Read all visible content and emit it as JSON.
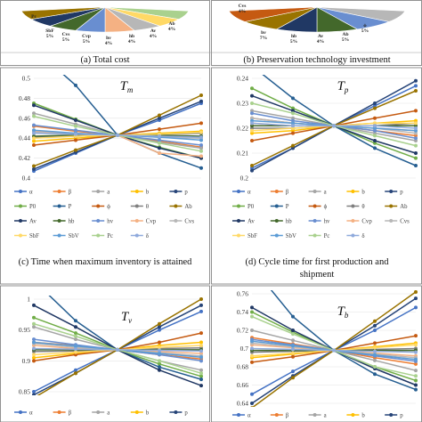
{
  "captions": {
    "a": "(a) Total cost",
    "b": "(b) Preservation technology investment",
    "c": "(c) Time when maximum inventory is attained",
    "d1": "(d) Cycle time for first production and",
    "d2": "shipment"
  },
  "pie_labels": {
    "a": [
      {
        "name": "Pc",
        "pct": ""
      },
      {
        "name": "SbF",
        "pct": "5%"
      },
      {
        "name": "Cvs",
        "pct": "5%"
      },
      {
        "name": "Cvp",
        "pct": "5%"
      },
      {
        "name": "hv",
        "pct": "4%"
      },
      {
        "name": "hb",
        "pct": "4%"
      },
      {
        "name": "Av",
        "pct": "4%"
      },
      {
        "name": "Ab",
        "pct": "4%"
      }
    ],
    "b": [
      {
        "name": "Cvs",
        "pct": "4%"
      },
      {
        "name": "hv",
        "pct": "7%"
      },
      {
        "name": "hb",
        "pct": "5%"
      },
      {
        "name": "Av",
        "pct": "4%"
      },
      {
        "name": "Ab",
        "pct": "5%"
      },
      {
        "name": "ϕ",
        "pct": "5%"
      }
    ]
  },
  "colors": {
    "α": "#4472c4",
    "β": "#ed7d31",
    "a": "#a5a5a5",
    "b": "#ffc000",
    "p": "#264478",
    "P0": "#70ad47",
    "P": "#255e91",
    "ϕ": "#c55a11",
    "θ": "#7f7f7f",
    "Ab": "#997300",
    "Av": "#203864",
    "hb": "#43682b",
    "hv": "#698ed0",
    "Cvp": "#f4b183",
    "Cvs": "#b7b7b7",
    "SbF": "#ffd966",
    "SbV": "#5b9bd5",
    "Pc": "#a9d18e",
    "δ": "#8faadc"
  },
  "chart_data": [
    {
      "type": "line",
      "title": "Tm",
      "x": [
        1,
        2,
        3,
        4,
        5
      ],
      "ylim": [
        0.4,
        0.5
      ],
      "yticks": [
        "0.5",
        "0.48",
        "0.46",
        "0.44",
        "0.42",
        "0.4"
      ],
      "legend_position": "bottom",
      "series": [
        {
          "name": "α",
          "values": [
            0.407,
            0.425,
            0.443,
            0.458,
            0.475
          ]
        },
        {
          "name": "β",
          "values": [
            0.452,
            0.447,
            0.443,
            0.437,
            0.431
          ]
        },
        {
          "name": "a",
          "values": [
            0.465,
            0.454,
            0.443,
            0.436,
            0.43
          ]
        },
        {
          "name": "b",
          "values": [
            0.437,
            0.44,
            0.443,
            0.445,
            0.447
          ]
        },
        {
          "name": "p",
          "values": [
            0.409,
            0.426,
            0.443,
            0.46,
            0.477
          ]
        },
        {
          "name": "P0",
          "values": [
            0.475,
            0.459,
            0.443,
            0.431,
            0.42
          ]
        },
        {
          "name": "P",
          "values": [
            0.53,
            0.493,
            0.443,
            0.425,
            0.41
          ]
        },
        {
          "name": "ϕ",
          "values": [
            0.433,
            0.438,
            0.443,
            0.449,
            0.455
          ]
        },
        {
          "name": "θ",
          "values": [
            0.441,
            0.442,
            0.443,
            0.444,
            0.445
          ]
        },
        {
          "name": "Ab",
          "values": [
            0.412,
            0.428,
            0.443,
            0.463,
            0.483
          ]
        },
        {
          "name": "Av",
          "values": [
            0.473,
            0.458,
            0.443,
            0.43,
            0.42
          ]
        },
        {
          "name": "hb",
          "values": [
            0.442,
            0.443,
            0.443,
            0.443,
            0.442
          ]
        },
        {
          "name": "hv",
          "values": [
            0.453,
            0.448,
            0.443,
            0.438,
            0.433
          ]
        },
        {
          "name": "Cvp",
          "values": [
            0.447,
            0.445,
            0.443,
            0.425,
            0.422
          ]
        },
        {
          "name": "Cvs",
          "values": [
            0.446,
            0.444,
            0.443,
            0.441,
            0.44
          ]
        },
        {
          "name": "SbF",
          "values": [
            0.44,
            0.442,
            0.443,
            0.444,
            0.446
          ]
        },
        {
          "name": "SbV",
          "values": [
            0.448,
            0.445,
            0.443,
            0.441,
            0.438
          ]
        },
        {
          "name": "Pc",
          "values": [
            0.462,
            0.452,
            0.443,
            0.435,
            0.427
          ]
        },
        {
          "name": "δ",
          "values": [
            0.445,
            0.444,
            0.443,
            0.442,
            0.441
          ]
        }
      ]
    },
    {
      "type": "line",
      "title": "Tp",
      "x": [
        1,
        2,
        3,
        4,
        5
      ],
      "ylim": [
        0.2,
        0.24
      ],
      "yticks": [
        "0.24",
        "0.23",
        "0.22",
        "0.21",
        "0.2"
      ],
      "legend_position": "bottom",
      "series": [
        {
          "name": "α",
          "values": [
            0.204,
            0.212,
            0.221,
            0.229,
            0.237
          ]
        },
        {
          "name": "β",
          "values": [
            0.224,
            0.222,
            0.221,
            0.219,
            0.217
          ]
        },
        {
          "name": "a",
          "values": [
            0.227,
            0.224,
            0.221,
            0.218,
            0.215
          ]
        },
        {
          "name": "b",
          "values": [
            0.218,
            0.219,
            0.221,
            0.222,
            0.223
          ]
        },
        {
          "name": "p",
          "values": [
            0.203,
            0.212,
            0.221,
            0.23,
            0.239
          ]
        },
        {
          "name": "P0",
          "values": [
            0.236,
            0.228,
            0.221,
            0.214,
            0.208
          ]
        },
        {
          "name": "P",
          "values": [
            0.245,
            0.232,
            0.221,
            0.212,
            0.205
          ]
        },
        {
          "name": "ϕ",
          "values": [
            0.215,
            0.218,
            0.221,
            0.224,
            0.227
          ]
        },
        {
          "name": "θ",
          "values": [
            0.22,
            0.22,
            0.221,
            0.221,
            0.222
          ]
        },
        {
          "name": "Ab",
          "values": [
            0.205,
            0.213,
            0.221,
            0.228,
            0.235
          ]
        },
        {
          "name": "Av",
          "values": [
            0.233,
            0.227,
            0.221,
            0.215,
            0.21
          ]
        },
        {
          "name": "hb",
          "values": [
            0.221,
            0.221,
            0.221,
            0.221,
            0.221
          ]
        },
        {
          "name": "hv",
          "values": [
            0.226,
            0.223,
            0.221,
            0.219,
            0.216
          ]
        },
        {
          "name": "Cvp",
          "values": [
            0.222,
            0.221,
            0.221,
            0.22,
            0.219
          ]
        },
        {
          "name": "Cvs",
          "values": [
            0.224,
            0.222,
            0.221,
            0.22,
            0.218
          ]
        },
        {
          "name": "SbF",
          "values": [
            0.219,
            0.22,
            0.221,
            0.222,
            0.222
          ]
        },
        {
          "name": "SbV",
          "values": [
            0.223,
            0.222,
            0.221,
            0.22,
            0.219
          ]
        },
        {
          "name": "Pc",
          "values": [
            0.23,
            0.226,
            0.221,
            0.217,
            0.213
          ]
        },
        {
          "name": "δ",
          "values": [
            0.222,
            0.221,
            0.221,
            0.221,
            0.22
          ]
        }
      ]
    },
    {
      "type": "line",
      "title": "Tv",
      "x": [
        1,
        2,
        3,
        4,
        5
      ],
      "ylim": [
        0.85,
        1.0
      ],
      "yticks": [
        "1",
        "0.95",
        "0.9",
        "0.85"
      ],
      "legend_position": "bottom",
      "series": [
        {
          "name": "α",
          "values": [
            0.85,
            0.885,
            0.918,
            0.95,
            0.98
          ]
        },
        {
          "name": "β",
          "values": [
            0.93,
            0.925,
            0.918,
            0.91,
            0.903
          ]
        },
        {
          "name": "a",
          "values": [
            0.955,
            0.935,
            0.918,
            0.9,
            0.885
          ]
        },
        {
          "name": "b",
          "values": [
            0.905,
            0.912,
            0.918,
            0.925,
            0.93
          ]
        },
        {
          "name": "p",
          "values": [
            0.845,
            0.88,
            0.918,
            0.955,
            0.99
          ]
        },
        {
          "name": "P0",
          "values": [
            0.97,
            0.945,
            0.918,
            0.895,
            0.875
          ]
        },
        {
          "name": "P",
          "values": [
            1.03,
            0.965,
            0.918,
            0.89,
            0.87
          ]
        },
        {
          "name": "ϕ",
          "values": [
            0.9,
            0.91,
            0.918,
            0.93,
            0.945
          ]
        },
        {
          "name": "θ",
          "values": [
            0.915,
            0.916,
            0.918,
            0.92,
            0.921
          ]
        },
        {
          "name": "Ab",
          "values": [
            0.84,
            0.88,
            0.918,
            0.96,
            1.0
          ]
        },
        {
          "name": "Av",
          "values": [
            0.99,
            0.955,
            0.918,
            0.885,
            0.86
          ]
        },
        {
          "name": "hb",
          "values": [
            0.918,
            0.918,
            0.918,
            0.918,
            0.918
          ]
        },
        {
          "name": "hv",
          "values": [
            0.935,
            0.926,
            0.918,
            0.91,
            0.9
          ]
        },
        {
          "name": "Cvp",
          "values": [
            0.925,
            0.92,
            0.918,
            0.915,
            0.912
          ]
        },
        {
          "name": "Cvs",
          "values": [
            0.928,
            0.922,
            0.918,
            0.913,
            0.908
          ]
        },
        {
          "name": "SbF",
          "values": [
            0.91,
            0.914,
            0.918,
            0.922,
            0.925
          ]
        },
        {
          "name": "SbV",
          "values": [
            0.93,
            0.924,
            0.918,
            0.912,
            0.906
          ]
        },
        {
          "name": "Pc",
          "values": [
            0.96,
            0.94,
            0.918,
            0.9,
            0.88
          ]
        },
        {
          "name": "δ",
          "values": [
            0.92,
            0.919,
            0.918,
            0.917,
            0.916
          ]
        }
      ]
    },
    {
      "type": "line",
      "title": "Tb",
      "x": [
        1,
        2,
        3,
        4,
        5
      ],
      "ylim": [
        0.64,
        0.76
      ],
      "yticks": [
        "0.76",
        "0.74",
        "0.72",
        "0.7",
        "0.68",
        "0.66",
        "0.64"
      ],
      "legend_position": "bottom",
      "series": [
        {
          "name": "α",
          "values": [
            0.65,
            0.675,
            0.698,
            0.72,
            0.745
          ]
        },
        {
          "name": "β",
          "values": [
            0.712,
            0.705,
            0.698,
            0.69,
            0.683
          ]
        },
        {
          "name": "a",
          "values": [
            0.72,
            0.709,
            0.698,
            0.687,
            0.676
          ]
        },
        {
          "name": "b",
          "values": [
            0.69,
            0.694,
            0.698,
            0.702,
            0.706
          ]
        },
        {
          "name": "p",
          "values": [
            0.64,
            0.67,
            0.698,
            0.725,
            0.755
          ]
        },
        {
          "name": "P0",
          "values": [
            0.74,
            0.718,
            0.698,
            0.68,
            0.665
          ]
        },
        {
          "name": "P",
          "values": [
            0.79,
            0.735,
            0.698,
            0.672,
            0.655
          ]
        },
        {
          "name": "ϕ",
          "values": [
            0.685,
            0.691,
            0.698,
            0.706,
            0.714
          ]
        },
        {
          "name": "θ",
          "values": [
            0.696,
            0.697,
            0.698,
            0.699,
            0.7
          ]
        },
        {
          "name": "Ab",
          "values": [
            0.635,
            0.668,
            0.698,
            0.73,
            0.762
          ]
        },
        {
          "name": "Av",
          "values": [
            0.745,
            0.72,
            0.698,
            0.678,
            0.66
          ]
        },
        {
          "name": "hb",
          "values": [
            0.698,
            0.698,
            0.698,
            0.698,
            0.698
          ]
        },
        {
          "name": "hv",
          "values": [
            0.71,
            0.704,
            0.698,
            0.692,
            0.686
          ]
        },
        {
          "name": "Cvp",
          "values": [
            0.704,
            0.701,
            0.698,
            0.695,
            0.692
          ]
        },
        {
          "name": "Cvs",
          "values": [
            0.706,
            0.702,
            0.698,
            0.694,
            0.69
          ]
        },
        {
          "name": "SbF",
          "values": [
            0.692,
            0.695,
            0.698,
            0.701,
            0.704
          ]
        },
        {
          "name": "SbV",
          "values": [
            0.708,
            0.703,
            0.698,
            0.693,
            0.688
          ]
        },
        {
          "name": "Pc",
          "values": [
            0.735,
            0.716,
            0.698,
            0.68,
            0.67
          ]
        },
        {
          "name": "δ",
          "values": [
            0.7,
            0.699,
            0.698,
            0.697,
            0.696
          ]
        }
      ]
    }
  ],
  "legend_order": [
    "α",
    "β",
    "a",
    "b",
    "p",
    "P0",
    "P",
    "ϕ",
    "θ",
    "Ab",
    "Av",
    "hb",
    "hv",
    "Cvp",
    "Cvs",
    "SbF",
    "SbV",
    "Pc",
    "δ"
  ],
  "legend_bottom": [
    "α",
    "β",
    "a",
    "b",
    "p"
  ]
}
